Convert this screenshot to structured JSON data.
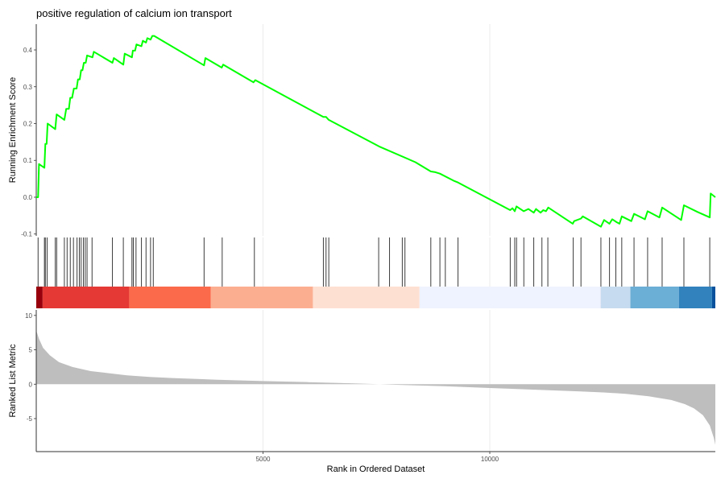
{
  "chart_data": {
    "type": "line",
    "title": "positive regulation of calcium ion transport",
    "xlabel": "Rank in Ordered Dataset",
    "xlim": [
      0,
      14973
    ],
    "x_ticks": [
      5000,
      10000
    ],
    "grid": true,
    "legend": "none",
    "panels": [
      {
        "name": "running-enrichment",
        "ylabel": "Running Enrichment Score",
        "ylim": [
          -0.105,
          0.47
        ],
        "y_ticks": [
          -0.1,
          0.0,
          0.1,
          0.2,
          0.3,
          0.4
        ],
        "y_tick_labels": [
          "-0.1",
          "0.0",
          "0.1",
          "0.2",
          "0.3",
          "0.4"
        ],
        "series": [
          {
            "color": "#00ff00",
            "points": [
              [
                0,
                0.0
              ],
              [
                40,
                0.0
              ],
              [
                60,
                0.09
              ],
              [
                180,
                0.08
              ],
              [
                200,
                0.145
              ],
              [
                230,
                0.145
              ],
              [
                250,
                0.2
              ],
              [
                420,
                0.185
              ],
              [
                450,
                0.225
              ],
              [
                620,
                0.21
              ],
              [
                660,
                0.24
              ],
              [
                720,
                0.24
              ],
              [
                750,
                0.27
              ],
              [
                790,
                0.27
              ],
              [
                830,
                0.295
              ],
              [
                890,
                0.295
              ],
              [
                920,
                0.32
              ],
              [
                960,
                0.32
              ],
              [
                990,
                0.345
              ],
              [
                1020,
                0.345
              ],
              [
                1050,
                0.365
              ],
              [
                1090,
                0.365
              ],
              [
                1120,
                0.385
              ],
              [
                1240,
                0.38
              ],
              [
                1270,
                0.395
              ],
              [
                1680,
                0.365
              ],
              [
                1710,
                0.378
              ],
              [
                1920,
                0.36
              ],
              [
                1950,
                0.39
              ],
              [
                2110,
                0.38
              ],
              [
                2130,
                0.398
              ],
              [
                2180,
                0.398
              ],
              [
                2210,
                0.415
              ],
              [
                2320,
                0.41
              ],
              [
                2350,
                0.425
              ],
              [
                2420,
                0.42
              ],
              [
                2450,
                0.432
              ],
              [
                2520,
                0.428
              ],
              [
                2560,
                0.438
              ],
              [
                2600,
                0.438
              ],
              [
                3700,
                0.358
              ],
              [
                3730,
                0.378
              ],
              [
                4090,
                0.352
              ],
              [
                4120,
                0.36
              ],
              [
                4790,
                0.312
              ],
              [
                4830,
                0.318
              ],
              [
                6330,
                0.218
              ],
              [
                6390,
                0.218
              ],
              [
                6450,
                0.21
              ],
              [
                7560,
                0.138
              ],
              [
                8360,
                0.095
              ],
              [
                8700,
                0.07
              ],
              [
                8800,
                0.068
              ],
              [
                8900,
                0.064
              ],
              [
                9200,
                0.045
              ],
              [
                9300,
                0.04
              ],
              [
                10450,
                -0.035
              ],
              [
                10500,
                -0.03
              ],
              [
                10550,
                -0.038
              ],
              [
                10590,
                -0.025
              ],
              [
                10750,
                -0.038
              ],
              [
                10850,
                -0.032
              ],
              [
                10970,
                -0.042
              ],
              [
                11020,
                -0.032
              ],
              [
                11120,
                -0.042
              ],
              [
                11180,
                -0.035
              ],
              [
                11240,
                -0.038
              ],
              [
                11290,
                -0.028
              ],
              [
                11830,
                -0.072
              ],
              [
                11860,
                -0.065
              ],
              [
                12010,
                -0.058
              ],
              [
                12050,
                -0.052
              ],
              [
                12450,
                -0.08
              ],
              [
                12520,
                -0.062
              ],
              [
                12640,
                -0.072
              ],
              [
                12700,
                -0.06
              ],
              [
                12800,
                -0.068
              ],
              [
                12860,
                -0.072
              ],
              [
                12910,
                -0.052
              ],
              [
                13120,
                -0.065
              ],
              [
                13180,
                -0.045
              ],
              [
                13420,
                -0.06
              ],
              [
                13480,
                -0.038
              ],
              [
                13740,
                -0.055
              ],
              [
                13800,
                -0.028
              ],
              [
                14220,
                -0.062
              ],
              [
                14280,
                -0.022
              ],
              [
                14580,
                -0.04
              ],
              [
                14850,
                -0.055
              ],
              [
                14870,
                0.01
              ],
              [
                14973,
                0.0
              ]
            ]
          }
        ]
      },
      {
        "name": "gene-hits",
        "hit_ranks": [
          40,
          180,
          200,
          240,
          420,
          450,
          620,
          680,
          750,
          820,
          900,
          950,
          990,
          1040,
          1080,
          1120,
          1230,
          1680,
          1920,
          2110,
          2140,
          2200,
          2320,
          2420,
          2520,
          2580,
          3700,
          4100,
          4810,
          6330,
          6390,
          6450,
          7550,
          7790,
          8070,
          8130,
          8700,
          8900,
          9020,
          9300,
          10450,
          10550,
          10590,
          10750,
          10970,
          11150,
          11280,
          11840,
          12010,
          12450,
          12640,
          12780,
          12910,
          13180,
          13480,
          13800,
          14280,
          14850
        ],
        "color_bands": [
          {
            "start": 0,
            "end": 140,
            "color": "#99000d"
          },
          {
            "start": 140,
            "end": 2050,
            "color": "#e53935"
          },
          {
            "start": 2050,
            "end": 3850,
            "color": "#fb6a4a"
          },
          {
            "start": 3850,
            "end": 6100,
            "color": "#fcae91"
          },
          {
            "start": 6100,
            "end": 8450,
            "color": "#fee0d2"
          },
          {
            "start": 8450,
            "end": 12450,
            "color": "#eff3ff"
          },
          {
            "start": 12450,
            "end": 13100,
            "color": "#c6dbef"
          },
          {
            "start": 13100,
            "end": 14170,
            "color": "#6baed6"
          },
          {
            "start": 14170,
            "end": 14900,
            "color": "#3182bd"
          },
          {
            "start": 14900,
            "end": 14973,
            "color": "#08519c"
          }
        ]
      },
      {
        "name": "ranked-list-metric",
        "type": "area",
        "ylabel": "Ranked List Metric",
        "ylim": [
          -9.8,
          10.8
        ],
        "y_ticks": [
          -5,
          0,
          5,
          10
        ],
        "y_tick_labels": [
          "-5",
          "0",
          "5",
          "10"
        ],
        "fill_color": "#bebebe",
        "points": [
          [
            0,
            7.8
          ],
          [
            60,
            6.6
          ],
          [
            150,
            5.3
          ],
          [
            300,
            4.2
          ],
          [
            500,
            3.2
          ],
          [
            800,
            2.5
          ],
          [
            1200,
            1.9
          ],
          [
            1600,
            1.6
          ],
          [
            2000,
            1.3
          ],
          [
            2500,
            1.05
          ],
          [
            3000,
            0.9
          ],
          [
            4000,
            0.65
          ],
          [
            5000,
            0.45
          ],
          [
            6000,
            0.3
          ],
          [
            7000,
            0.12
          ],
          [
            7500,
            0.02
          ],
          [
            8000,
            -0.1
          ],
          [
            9000,
            -0.3
          ],
          [
            10000,
            -0.55
          ],
          [
            11000,
            -0.8
          ],
          [
            12000,
            -1.05
          ],
          [
            12500,
            -1.2
          ],
          [
            13000,
            -1.4
          ],
          [
            13500,
            -1.75
          ],
          [
            14000,
            -2.3
          ],
          [
            14300,
            -2.9
          ],
          [
            14500,
            -3.5
          ],
          [
            14700,
            -4.5
          ],
          [
            14850,
            -6.0
          ],
          [
            14940,
            -7.8
          ],
          [
            14973,
            -8.8
          ]
        ]
      }
    ]
  }
}
